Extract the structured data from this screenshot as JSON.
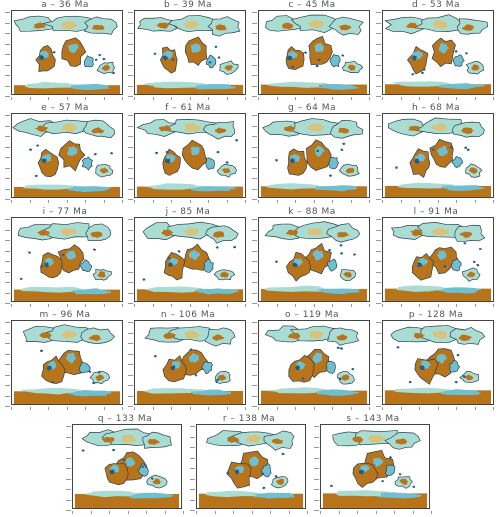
{
  "figure": {
    "panels": [
      {
        "id": "a",
        "title": "a – 36 Ma"
      },
      {
        "id": "b",
        "title": "b – 39 Ma"
      },
      {
        "id": "c",
        "title": "c – 45 Ma"
      },
      {
        "id": "d",
        "title": "d – 53 Ma"
      },
      {
        "id": "e",
        "title": "e – 57 Ma"
      },
      {
        "id": "f",
        "title": "f – 61 Ma"
      },
      {
        "id": "g",
        "title": "g – 64 Ma"
      },
      {
        "id": "h",
        "title": "h – 68 Ma"
      },
      {
        "id": "i",
        "title": "i – 77 Ma"
      },
      {
        "id": "j",
        "title": "j – 85 Ma"
      },
      {
        "id": "k",
        "title": "k – 88 Ma"
      },
      {
        "id": "l",
        "title": "l – 91 Ma"
      },
      {
        "id": "m",
        "title": "m – 96 Ma"
      },
      {
        "id": "n",
        "title": "n – 106 Ma"
      },
      {
        "id": "o",
        "title": "o – 119 Ma"
      },
      {
        "id": "p",
        "title": "p – 128 Ma"
      },
      {
        "id": "q",
        "title": "q – 133 Ma"
      },
      {
        "id": "r",
        "title": "r – 138 Ma"
      },
      {
        "id": "s",
        "title": "s – 143 Ma"
      }
    ]
  },
  "colors": {
    "land_dry": "#b8741a",
    "land_mid": "#d9c27a",
    "land_wet_light": "#a9dcd2",
    "land_wet": "#6fbfcf",
    "land_very_wet": "#1f5d8a",
    "coast_line": "#2a3f4f",
    "ocean": "#ffffff"
  }
}
